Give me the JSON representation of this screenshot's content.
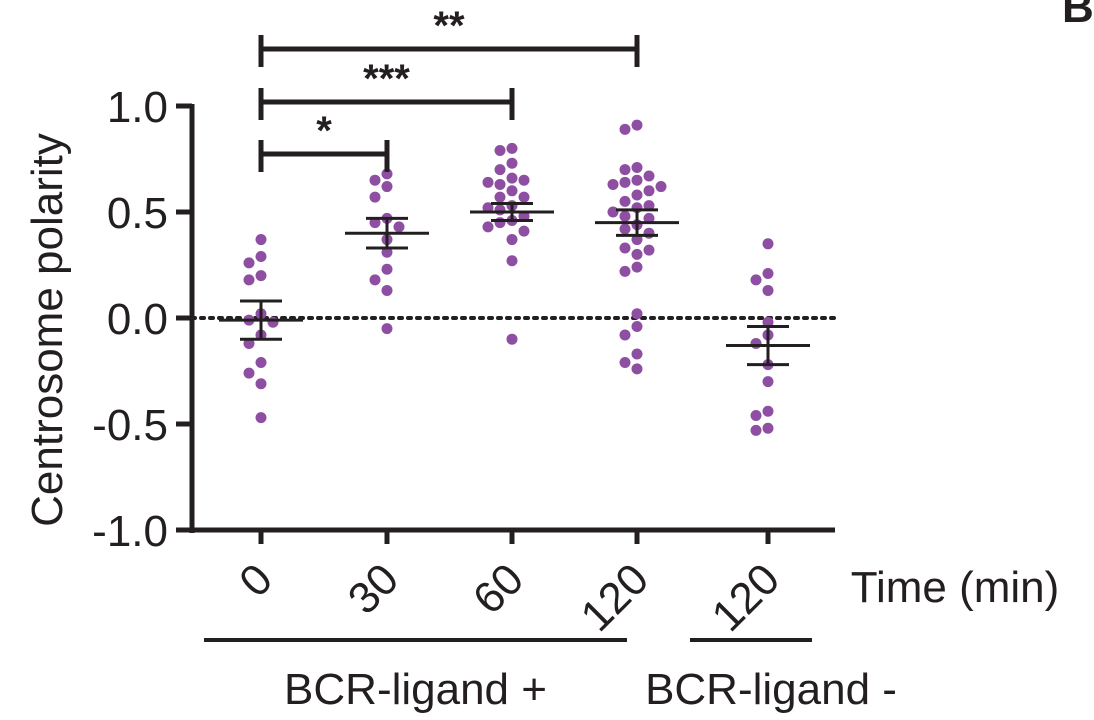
{
  "chart_data": {
    "type": "scatter",
    "ylabel": "Centrosome polarity",
    "xlabel": "Time (min)",
    "ylim": [
      -1.0,
      1.0
    ],
    "yticks": [
      1.0,
      0.5,
      0.0,
      -0.5,
      -1.0
    ],
    "ytick_labels": [
      "1.0",
      "0.5",
      "0.0",
      "-0.5",
      "-1.0"
    ],
    "categories": [
      "0",
      "30",
      "60",
      "120",
      "120"
    ],
    "groups": [
      {
        "label": "BCR-ligand +",
        "categories": [
          0,
          1,
          2,
          3
        ]
      },
      {
        "label": "BCR-ligand -",
        "categories": [
          4
        ]
      }
    ],
    "reference_line": 0.0,
    "point_color": "#8e4fa3",
    "axis_color": "#231f20",
    "series": [
      {
        "category": "0",
        "mean": -0.01,
        "sem": 0.09,
        "values": [
          0.37,
          0.29,
          0.26,
          0.2,
          0.18,
          0.02,
          -0.01,
          -0.02,
          -0.08,
          -0.12,
          -0.21,
          -0.31,
          -0.26,
          -0.47
        ]
      },
      {
        "category": "30",
        "mean": 0.4,
        "sem": 0.07,
        "values": [
          0.68,
          0.65,
          0.62,
          0.57,
          0.47,
          0.45,
          0.43,
          0.37,
          0.31,
          0.23,
          0.18,
          0.13,
          -0.05
        ]
      },
      {
        "category": "60",
        "mean": 0.5,
        "sem": 0.04,
        "values": [
          0.8,
          0.79,
          0.73,
          0.7,
          0.66,
          0.65,
          0.63,
          0.64,
          0.6,
          0.57,
          0.57,
          0.53,
          0.52,
          0.51,
          0.48,
          0.46,
          0.45,
          0.43,
          0.41,
          0.37,
          0.27,
          -0.1
        ]
      },
      {
        "category": "120",
        "mean": 0.45,
        "sem": 0.06,
        "values": [
          0.91,
          0.89,
          0.71,
          0.7,
          0.67,
          0.65,
          0.64,
          0.63,
          0.62,
          0.6,
          0.58,
          0.55,
          0.53,
          0.52,
          0.5,
          0.48,
          0.47,
          0.44,
          0.42,
          0.4,
          0.37,
          0.33,
          0.32,
          0.3,
          0.24,
          0.22,
          0.02,
          -0.04,
          -0.08,
          -0.17,
          -0.21,
          -0.24
        ]
      },
      {
        "category": "120",
        "mean": -0.13,
        "sem": 0.09,
        "values": [
          0.35,
          0.21,
          0.18,
          0.13,
          -0.02,
          -0.08,
          -0.12,
          -0.22,
          -0.3,
          -0.44,
          -0.46,
          -0.52,
          -0.53
        ]
      }
    ],
    "significance": [
      {
        "from": 0,
        "to": 1,
        "label": "*"
      },
      {
        "from": 0,
        "to": 2,
        "label": "***"
      },
      {
        "from": 0,
        "to": 3,
        "label": "**"
      }
    ],
    "panel_letter": "B"
  }
}
